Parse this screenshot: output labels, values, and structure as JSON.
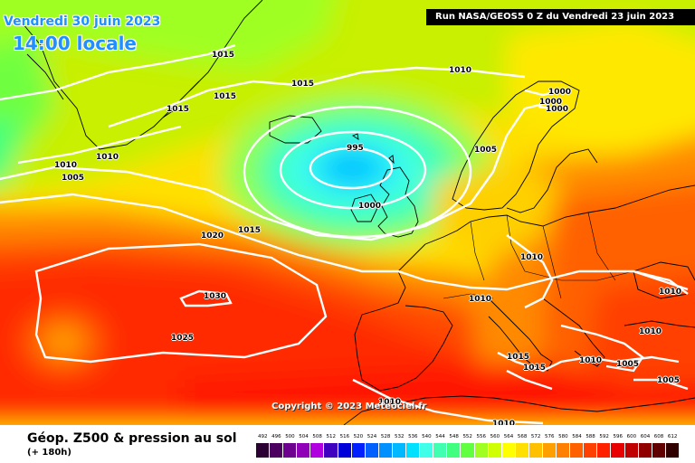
{
  "header": {
    "date": "Vendredi 30 juin 2023",
    "time": "14:00 locale",
    "run": "Run NASA/GEOS5 0 Z du Vendredi 23 juin 2023"
  },
  "copyright": "Copyright © 2023 Meteociel.fr",
  "footer": {
    "title": "Géop. Z500 & pression au sol",
    "subtitle": "(+ 180h)"
  },
  "legend": {
    "labels": [
      "492",
      "496",
      "500",
      "504",
      "508",
      "512",
      "516",
      "520",
      "524",
      "528",
      "532",
      "536",
      "540",
      "544",
      "548",
      "552",
      "556",
      "560",
      "564",
      "568",
      "572",
      "576",
      "580",
      "584",
      "588",
      "592",
      "596",
      "600",
      "604",
      "608",
      "612"
    ],
    "colors": [
      "#2b0033",
      "#4b0060",
      "#6e0090",
      "#9000b8",
      "#b000e0",
      "#4000c0",
      "#0000d8",
      "#0020ff",
      "#0060ff",
      "#0090ff",
      "#00b8ff",
      "#00e0ff",
      "#40ffe8",
      "#40ffb0",
      "#40ff80",
      "#60ff40",
      "#a0ff20",
      "#d0ff00",
      "#ffff00",
      "#ffe000",
      "#ffc000",
      "#ffa000",
      "#ff8000",
      "#ff6000",
      "#ff4000",
      "#ff2000",
      "#e80000",
      "#c00000",
      "#900000",
      "#600000",
      "#300000"
    ]
  },
  "colors": {
    "accent_blue": "#1e90ff",
    "isobar": "#ffffff",
    "coast": "#000000"
  },
  "pressure_labels": [
    "1015",
    "1015",
    "1015",
    "1015",
    "1010",
    "1010",
    "1010",
    "1005",
    "1000",
    "1000",
    "1000",
    "995",
    "1005",
    "1000",
    "1020",
    "1015",
    "1030",
    "1025",
    "1010",
    "1010",
    "1010",
    "1010",
    "1015",
    "1015",
    "1010",
    "1005",
    "1005",
    "1010",
    "1010"
  ]
}
